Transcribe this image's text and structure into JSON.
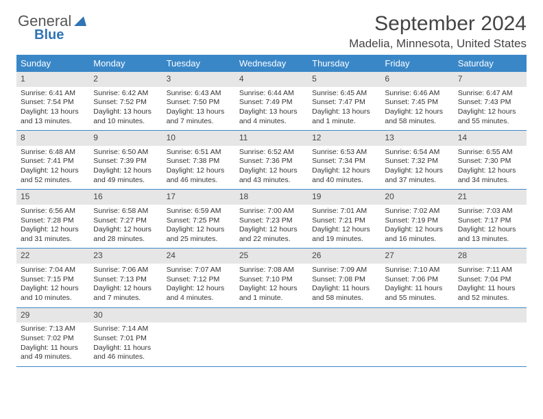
{
  "logo": {
    "line1": "General",
    "line2": "Blue"
  },
  "title": "September 2024",
  "location": "Madelia, Minnesota, United States",
  "colors": {
    "header_bg": "#3a87c8",
    "header_fg": "#ffffff",
    "daynum_bg": "#e6e6e6",
    "week_border": "#3a87c8",
    "text": "#333333",
    "logo_gray": "#555555",
    "logo_blue": "#2f74b5",
    "page_bg": "#ffffff"
  },
  "days_of_week": [
    "Sunday",
    "Monday",
    "Tuesday",
    "Wednesday",
    "Thursday",
    "Friday",
    "Saturday"
  ],
  "weeks": [
    [
      {
        "n": "1",
        "sr": "Sunrise: 6:41 AM",
        "ss": "Sunset: 7:54 PM",
        "d1": "Daylight: 13 hours",
        "d2": "and 13 minutes."
      },
      {
        "n": "2",
        "sr": "Sunrise: 6:42 AM",
        "ss": "Sunset: 7:52 PM",
        "d1": "Daylight: 13 hours",
        "d2": "and 10 minutes."
      },
      {
        "n": "3",
        "sr": "Sunrise: 6:43 AM",
        "ss": "Sunset: 7:50 PM",
        "d1": "Daylight: 13 hours",
        "d2": "and 7 minutes."
      },
      {
        "n": "4",
        "sr": "Sunrise: 6:44 AM",
        "ss": "Sunset: 7:49 PM",
        "d1": "Daylight: 13 hours",
        "d2": "and 4 minutes."
      },
      {
        "n": "5",
        "sr": "Sunrise: 6:45 AM",
        "ss": "Sunset: 7:47 PM",
        "d1": "Daylight: 13 hours",
        "d2": "and 1 minute."
      },
      {
        "n": "6",
        "sr": "Sunrise: 6:46 AM",
        "ss": "Sunset: 7:45 PM",
        "d1": "Daylight: 12 hours",
        "d2": "and 58 minutes."
      },
      {
        "n": "7",
        "sr": "Sunrise: 6:47 AM",
        "ss": "Sunset: 7:43 PM",
        "d1": "Daylight: 12 hours",
        "d2": "and 55 minutes."
      }
    ],
    [
      {
        "n": "8",
        "sr": "Sunrise: 6:48 AM",
        "ss": "Sunset: 7:41 PM",
        "d1": "Daylight: 12 hours",
        "d2": "and 52 minutes."
      },
      {
        "n": "9",
        "sr": "Sunrise: 6:50 AM",
        "ss": "Sunset: 7:39 PM",
        "d1": "Daylight: 12 hours",
        "d2": "and 49 minutes."
      },
      {
        "n": "10",
        "sr": "Sunrise: 6:51 AM",
        "ss": "Sunset: 7:38 PM",
        "d1": "Daylight: 12 hours",
        "d2": "and 46 minutes."
      },
      {
        "n": "11",
        "sr": "Sunrise: 6:52 AM",
        "ss": "Sunset: 7:36 PM",
        "d1": "Daylight: 12 hours",
        "d2": "and 43 minutes."
      },
      {
        "n": "12",
        "sr": "Sunrise: 6:53 AM",
        "ss": "Sunset: 7:34 PM",
        "d1": "Daylight: 12 hours",
        "d2": "and 40 minutes."
      },
      {
        "n": "13",
        "sr": "Sunrise: 6:54 AM",
        "ss": "Sunset: 7:32 PM",
        "d1": "Daylight: 12 hours",
        "d2": "and 37 minutes."
      },
      {
        "n": "14",
        "sr": "Sunrise: 6:55 AM",
        "ss": "Sunset: 7:30 PM",
        "d1": "Daylight: 12 hours",
        "d2": "and 34 minutes."
      }
    ],
    [
      {
        "n": "15",
        "sr": "Sunrise: 6:56 AM",
        "ss": "Sunset: 7:28 PM",
        "d1": "Daylight: 12 hours",
        "d2": "and 31 minutes."
      },
      {
        "n": "16",
        "sr": "Sunrise: 6:58 AM",
        "ss": "Sunset: 7:27 PM",
        "d1": "Daylight: 12 hours",
        "d2": "and 28 minutes."
      },
      {
        "n": "17",
        "sr": "Sunrise: 6:59 AM",
        "ss": "Sunset: 7:25 PM",
        "d1": "Daylight: 12 hours",
        "d2": "and 25 minutes."
      },
      {
        "n": "18",
        "sr": "Sunrise: 7:00 AM",
        "ss": "Sunset: 7:23 PM",
        "d1": "Daylight: 12 hours",
        "d2": "and 22 minutes."
      },
      {
        "n": "19",
        "sr": "Sunrise: 7:01 AM",
        "ss": "Sunset: 7:21 PM",
        "d1": "Daylight: 12 hours",
        "d2": "and 19 minutes."
      },
      {
        "n": "20",
        "sr": "Sunrise: 7:02 AM",
        "ss": "Sunset: 7:19 PM",
        "d1": "Daylight: 12 hours",
        "d2": "and 16 minutes."
      },
      {
        "n": "21",
        "sr": "Sunrise: 7:03 AM",
        "ss": "Sunset: 7:17 PM",
        "d1": "Daylight: 12 hours",
        "d2": "and 13 minutes."
      }
    ],
    [
      {
        "n": "22",
        "sr": "Sunrise: 7:04 AM",
        "ss": "Sunset: 7:15 PM",
        "d1": "Daylight: 12 hours",
        "d2": "and 10 minutes."
      },
      {
        "n": "23",
        "sr": "Sunrise: 7:06 AM",
        "ss": "Sunset: 7:13 PM",
        "d1": "Daylight: 12 hours",
        "d2": "and 7 minutes."
      },
      {
        "n": "24",
        "sr": "Sunrise: 7:07 AM",
        "ss": "Sunset: 7:12 PM",
        "d1": "Daylight: 12 hours",
        "d2": "and 4 minutes."
      },
      {
        "n": "25",
        "sr": "Sunrise: 7:08 AM",
        "ss": "Sunset: 7:10 PM",
        "d1": "Daylight: 12 hours",
        "d2": "and 1 minute."
      },
      {
        "n": "26",
        "sr": "Sunrise: 7:09 AM",
        "ss": "Sunset: 7:08 PM",
        "d1": "Daylight: 11 hours",
        "d2": "and 58 minutes."
      },
      {
        "n": "27",
        "sr": "Sunrise: 7:10 AM",
        "ss": "Sunset: 7:06 PM",
        "d1": "Daylight: 11 hours",
        "d2": "and 55 minutes."
      },
      {
        "n": "28",
        "sr": "Sunrise: 7:11 AM",
        "ss": "Sunset: 7:04 PM",
        "d1": "Daylight: 11 hours",
        "d2": "and 52 minutes."
      }
    ],
    [
      {
        "n": "29",
        "sr": "Sunrise: 7:13 AM",
        "ss": "Sunset: 7:02 PM",
        "d1": "Daylight: 11 hours",
        "d2": "and 49 minutes."
      },
      {
        "n": "30",
        "sr": "Sunrise: 7:14 AM",
        "ss": "Sunset: 7:01 PM",
        "d1": "Daylight: 11 hours",
        "d2": "and 46 minutes."
      },
      null,
      null,
      null,
      null,
      null
    ]
  ]
}
